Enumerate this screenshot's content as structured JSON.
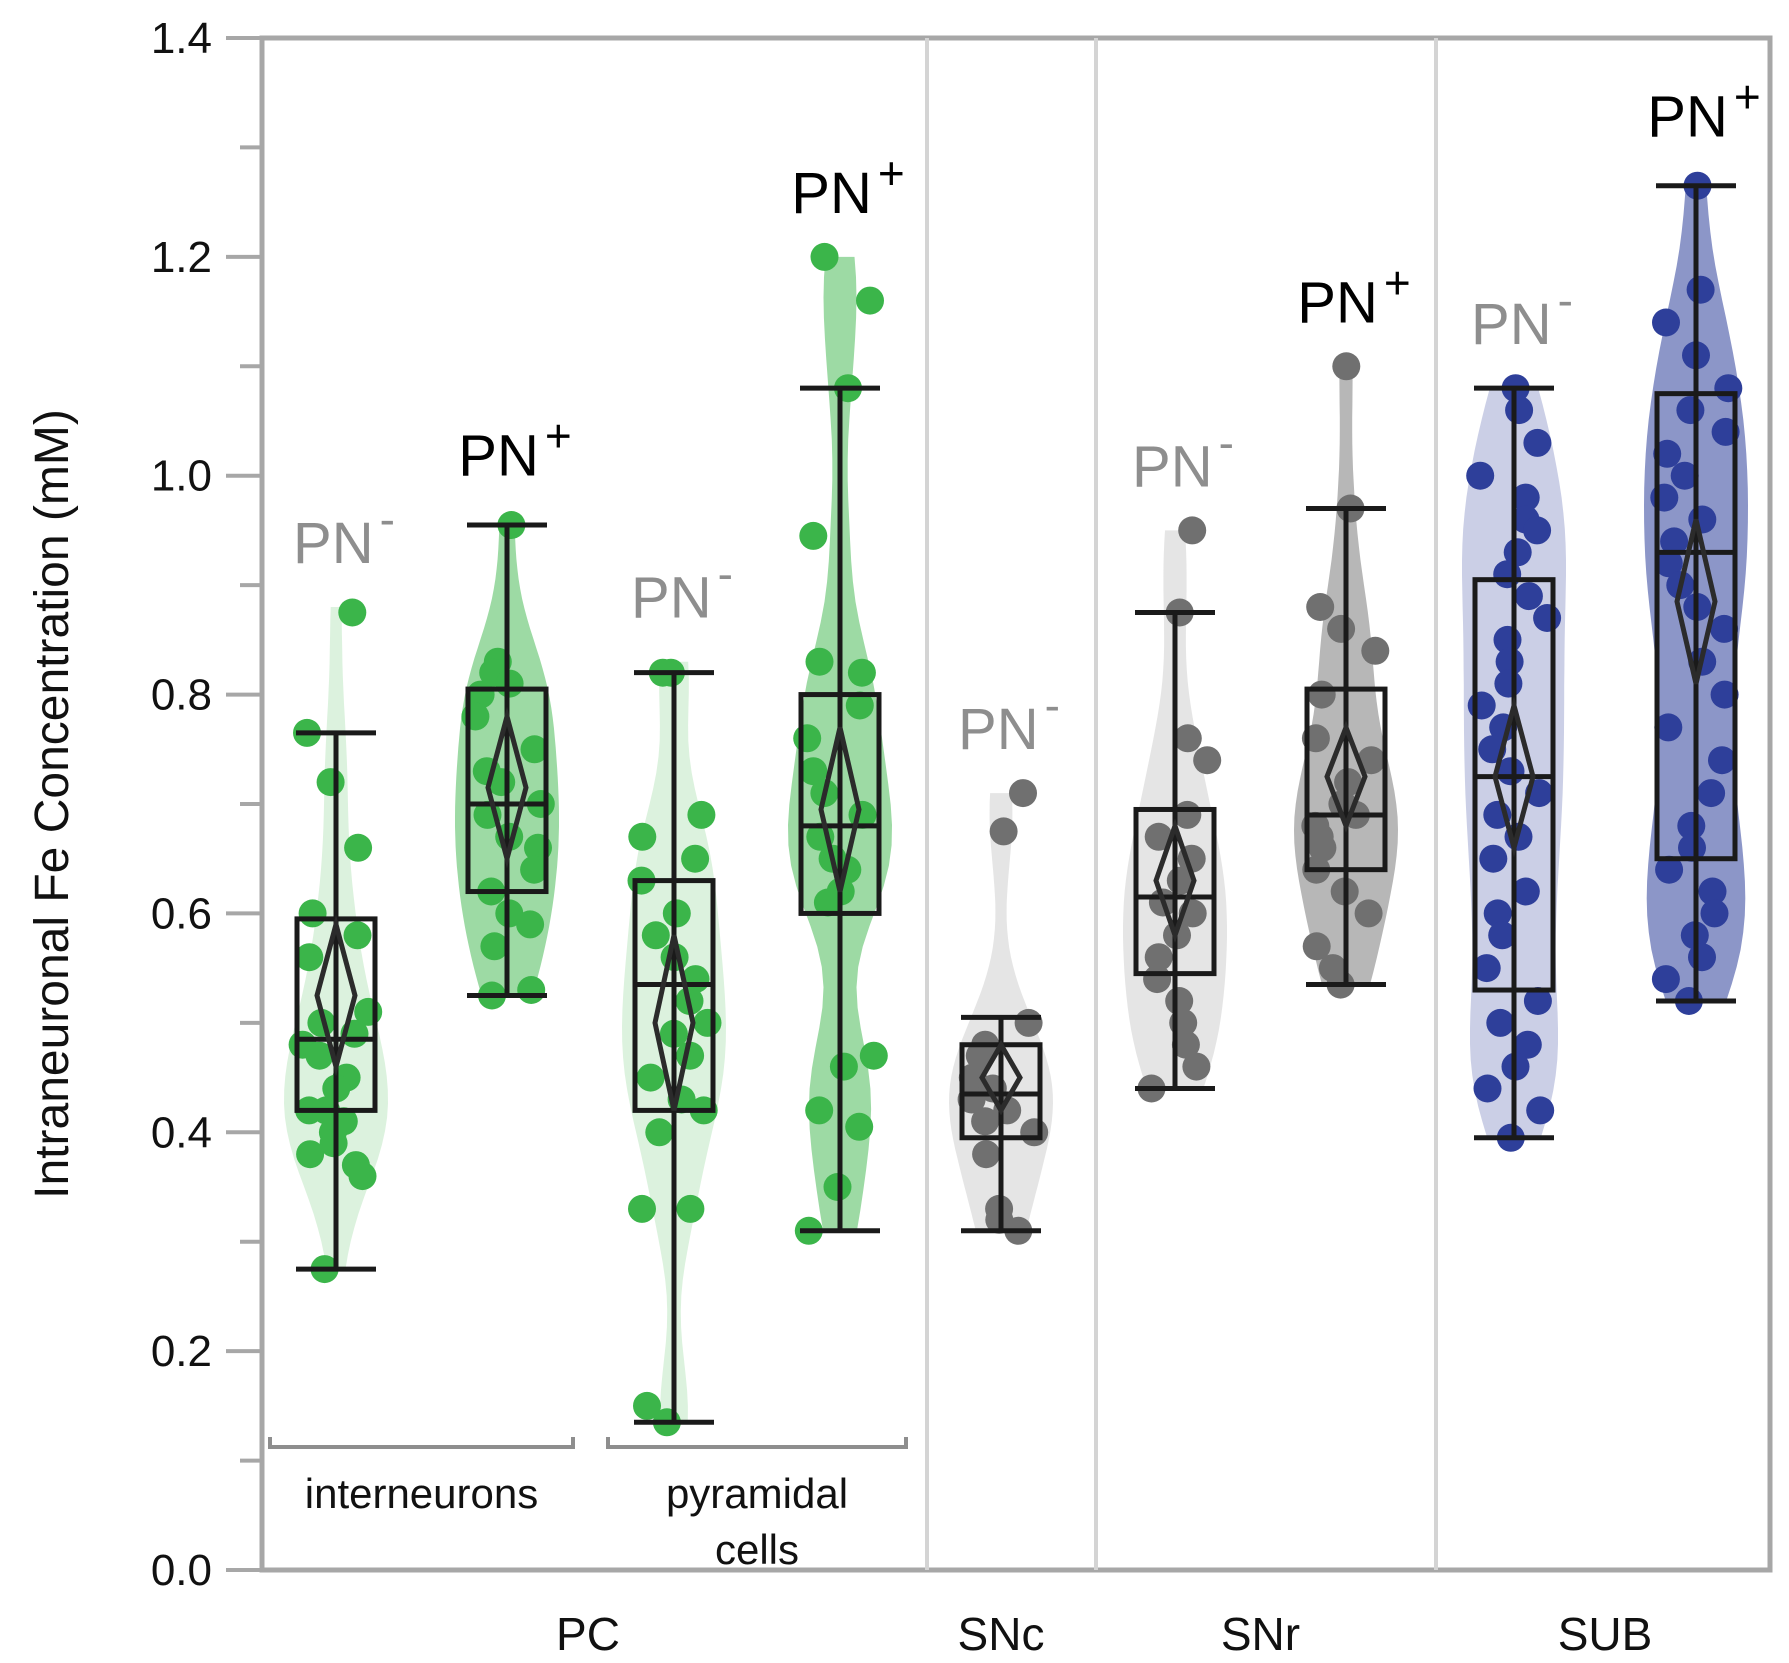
{
  "chart_data": {
    "type": "box-violin",
    "ylabel": "Intraneuronal Fe Concentration (mM)",
    "ylim": [
      0,
      1.4
    ],
    "yticks": [
      "0.0",
      "0.2",
      "0.4",
      "0.6",
      "0.8",
      "1.0",
      "1.2",
      "1.4"
    ],
    "regions": [
      {
        "name": "PC",
        "groups": [
          0,
          1,
          2,
          3
        ]
      },
      {
        "name": "SNc",
        "groups": [
          4
        ]
      },
      {
        "name": "SNr",
        "groups": [
          5,
          6
        ]
      },
      {
        "name": "SUB",
        "groups": [
          7,
          8
        ]
      }
    ],
    "subgroups": [
      {
        "label_lines": [
          "interneurons"
        ],
        "groups": [
          0,
          1
        ]
      },
      {
        "label_lines": [
          "pyramidal",
          "cells"
        ],
        "groups": [
          2,
          3
        ]
      }
    ],
    "groups": [
      {
        "id": "pc-int-pn-neg",
        "label": "PN",
        "sign": "-",
        "color": "#3bb54a",
        "label_color": "#8e8e8e",
        "violin_opacity": 0.18,
        "whisker_low": 0.275,
        "q1": 0.42,
        "median": 0.485,
        "q3": 0.595,
        "whisker_high": 0.765,
        "mean": 0.525,
        "ci": [
          0.46,
          0.59
        ],
        "violin_max": 0.88,
        "points": [
          0.875,
          0.765,
          0.72,
          0.66,
          0.6,
          0.58,
          0.56,
          0.51,
          0.5,
          0.49,
          0.48,
          0.47,
          0.45,
          0.44,
          0.42,
          0.42,
          0.41,
          0.4,
          0.39,
          0.38,
          0.37,
          0.36,
          0.275
        ]
      },
      {
        "id": "pc-int-pn-pos",
        "label": "PN",
        "sign": "+",
        "color": "#3bb54a",
        "label_color": "#000000",
        "violin_opacity": 0.5,
        "whisker_low": 0.525,
        "q1": 0.62,
        "median": 0.7,
        "q3": 0.805,
        "whisker_high": 0.955,
        "mean": 0.715,
        "ci": [
          0.65,
          0.78
        ],
        "violin_max": 0.96,
        "points": [
          0.955,
          0.83,
          0.82,
          0.81,
          0.8,
          0.78,
          0.75,
          0.73,
          0.72,
          0.7,
          0.69,
          0.67,
          0.66,
          0.64,
          0.62,
          0.6,
          0.59,
          0.57,
          0.53,
          0.525
        ]
      },
      {
        "id": "pc-pyr-pn-neg",
        "label": "PN",
        "sign": "-",
        "color": "#3bb54a",
        "label_color": "#8e8e8e",
        "violin_opacity": 0.18,
        "whisker_low": 0.135,
        "q1": 0.42,
        "median": 0.535,
        "q3": 0.63,
        "whisker_high": 0.82,
        "mean": 0.5,
        "ci": [
          0.42,
          0.58
        ],
        "violin_max": 0.83,
        "points": [
          0.82,
          0.82,
          0.69,
          0.67,
          0.65,
          0.63,
          0.6,
          0.58,
          0.56,
          0.54,
          0.52,
          0.5,
          0.49,
          0.47,
          0.45,
          0.43,
          0.42,
          0.4,
          0.33,
          0.33,
          0.15,
          0.135
        ]
      },
      {
        "id": "pc-pyr-pn-pos",
        "label": "PN",
        "sign": "+",
        "color": "#3bb54a",
        "label_color": "#000000",
        "violin_opacity": 0.5,
        "whisker_low": 0.31,
        "q1": 0.6,
        "median": 0.68,
        "q3": 0.8,
        "whisker_high": 1.08,
        "mean": 0.695,
        "ci": [
          0.62,
          0.77
        ],
        "violin_max": 1.2,
        "points": [
          1.2,
          1.16,
          1.08,
          0.945,
          0.83,
          0.82,
          0.79,
          0.76,
          0.73,
          0.71,
          0.69,
          0.67,
          0.65,
          0.64,
          0.62,
          0.61,
          0.47,
          0.46,
          0.42,
          0.405,
          0.35,
          0.31
        ]
      },
      {
        "id": "snc-pn-neg",
        "label": "PN",
        "sign": "-",
        "color": "#707070",
        "label_color": "#8e8e8e",
        "violin_opacity": 0.18,
        "whisker_low": 0.31,
        "q1": 0.395,
        "median": 0.435,
        "q3": 0.48,
        "whisker_high": 0.505,
        "mean": 0.45,
        "ci": [
          0.42,
          0.48
        ],
        "violin_max": 0.71,
        "points": [
          0.71,
          0.675,
          0.5,
          0.48,
          0.47,
          0.45,
          0.44,
          0.43,
          0.42,
          0.41,
          0.4,
          0.38,
          0.33,
          0.32,
          0.31
        ]
      },
      {
        "id": "snr-pn-neg",
        "label": "PN",
        "sign": "-",
        "color": "#707070",
        "label_color": "#8e8e8e",
        "violin_opacity": 0.18,
        "whisker_low": 0.44,
        "q1": 0.545,
        "median": 0.615,
        "q3": 0.695,
        "whisker_high": 0.875,
        "mean": 0.63,
        "ci": [
          0.58,
          0.68
        ],
        "violin_max": 0.95,
        "points": [
          0.95,
          0.875,
          0.76,
          0.74,
          0.69,
          0.67,
          0.65,
          0.63,
          0.61,
          0.6,
          0.58,
          0.56,
          0.54,
          0.52,
          0.5,
          0.48,
          0.46,
          0.44
        ]
      },
      {
        "id": "snr-pn-pos",
        "label": "PN",
        "sign": "+",
        "color": "#707070",
        "label_color": "#000000",
        "violin_opacity": 0.5,
        "whisker_low": 0.535,
        "q1": 0.64,
        "median": 0.69,
        "q3": 0.805,
        "whisker_high": 0.97,
        "mean": 0.725,
        "ci": [
          0.68,
          0.77
        ],
        "violin_max": 1.1,
        "points": [
          1.1,
          0.97,
          0.88,
          0.86,
          0.84,
          0.8,
          0.76,
          0.74,
          0.72,
          0.7,
          0.69,
          0.68,
          0.67,
          0.66,
          0.64,
          0.62,
          0.6,
          0.57,
          0.55,
          0.535
        ]
      },
      {
        "id": "sub-pn-neg",
        "label": "PN",
        "sign": "-",
        "color": "#2e3f9a",
        "label_color": "#8e8e8e",
        "violin_opacity": 0.25,
        "whisker_low": 0.395,
        "q1": 0.53,
        "median": 0.725,
        "q3": 0.905,
        "whisker_high": 1.08,
        "mean": 0.725,
        "ci": [
          0.66,
          0.79
        ],
        "violin_max": 1.08,
        "points": [
          1.08,
          1.06,
          1.03,
          1.0,
          0.98,
          0.96,
          0.95,
          0.93,
          0.91,
          0.89,
          0.87,
          0.85,
          0.83,
          0.81,
          0.79,
          0.77,
          0.75,
          0.73,
          0.71,
          0.69,
          0.67,
          0.65,
          0.62,
          0.6,
          0.58,
          0.55,
          0.52,
          0.5,
          0.48,
          0.46,
          0.44,
          0.42,
          0.395
        ]
      },
      {
        "id": "sub-pn-pos",
        "label": "PN",
        "sign": "+",
        "color": "#2e3f9a",
        "label_color": "#000000",
        "violin_opacity": 0.55,
        "whisker_low": 0.52,
        "q1": 0.65,
        "median": 0.93,
        "q3": 1.075,
        "whisker_high": 1.265,
        "mean": 0.885,
        "ci": [
          0.81,
          0.96
        ],
        "violin_max": 1.27,
        "points": [
          1.265,
          1.17,
          1.14,
          1.11,
          1.08,
          1.06,
          1.04,
          1.02,
          1.0,
          0.98,
          0.96,
          0.94,
          0.92,
          0.9,
          0.88,
          0.86,
          0.83,
          0.8,
          0.77,
          0.74,
          0.71,
          0.68,
          0.66,
          0.64,
          0.62,
          0.6,
          0.58,
          0.56,
          0.54,
          0.52
        ]
      }
    ]
  }
}
